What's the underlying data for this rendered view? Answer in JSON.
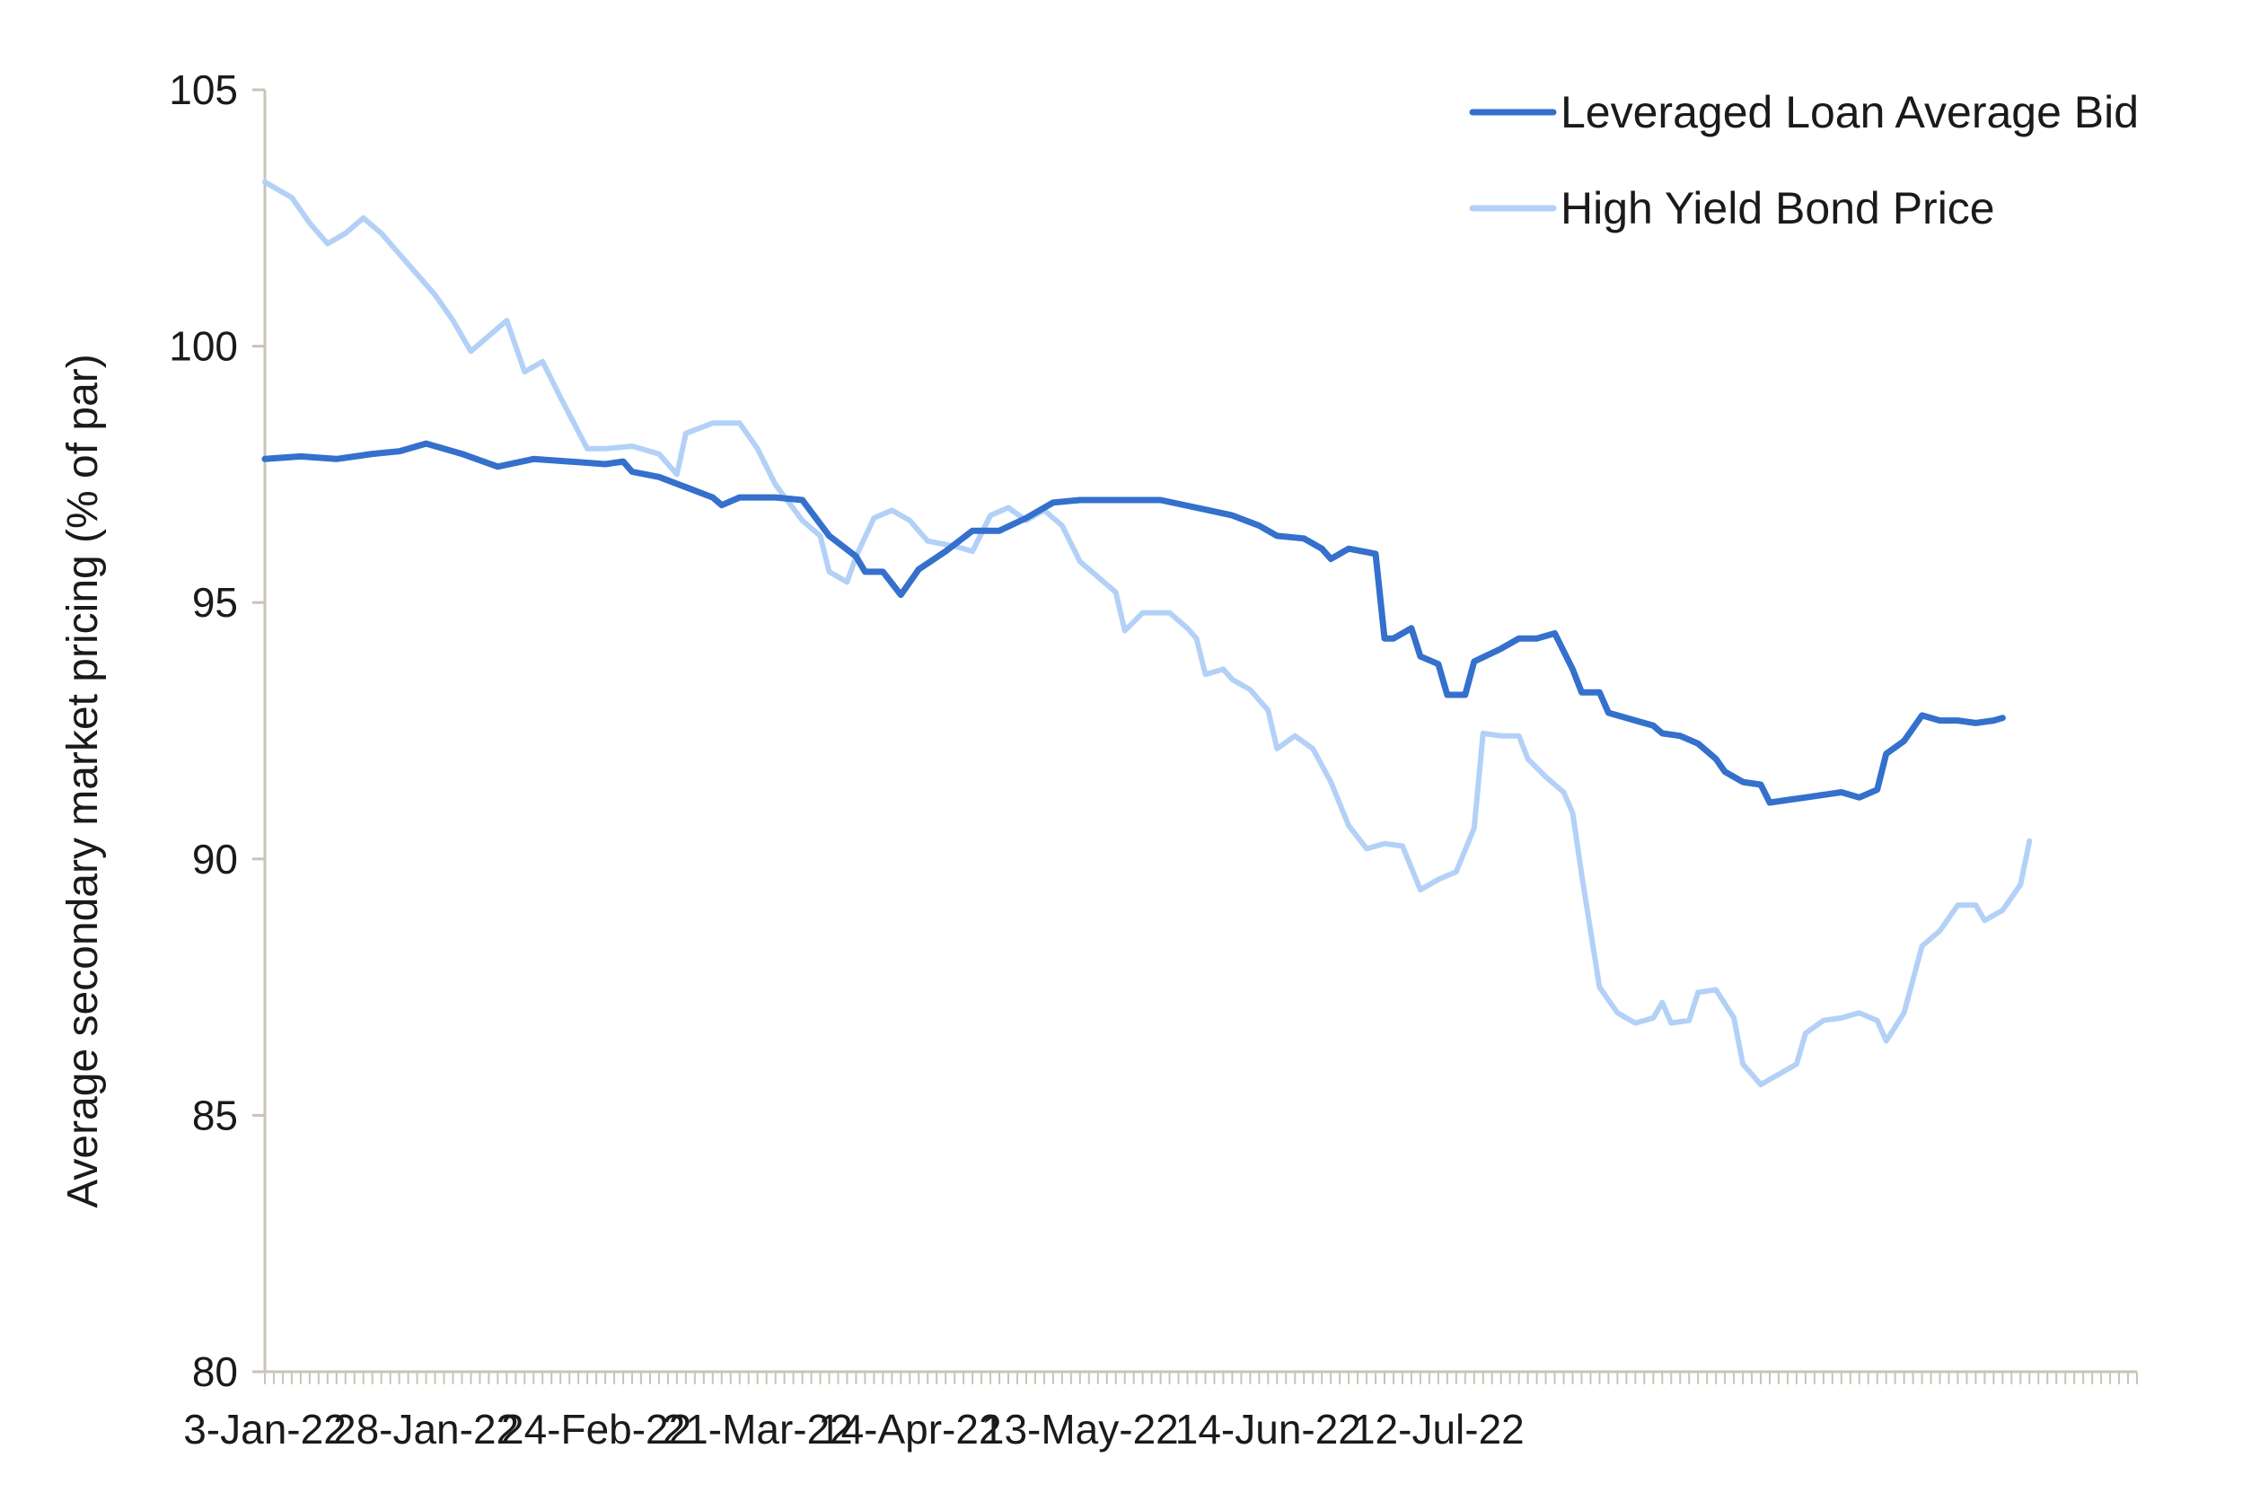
{
  "chart_data": {
    "type": "line",
    "ylabel": "Average secondary market pricing (% of par)",
    "xlabel": "",
    "ylim": [
      80,
      105
    ],
    "y_ticks": [
      80,
      85,
      90,
      95,
      100,
      105
    ],
    "x_tick_labels": [
      "3-Jan-22",
      "28-Jan-22",
      "24-Feb-22",
      "21-Mar-22",
      "14-Apr-22",
      "13-May-22",
      "14-Jun-22",
      "12-Jul-22"
    ],
    "x_tick_label_indices": [
      0,
      18,
      37,
      55,
      72,
      91,
      112,
      131
    ],
    "point_count": 150,
    "grid": false,
    "legend_position": "top-right",
    "series": [
      {
        "name": "Leveraged Loan Average Bid",
        "color": "#3470cc",
        "points": [
          [
            0,
            97.8
          ],
          [
            4,
            97.85
          ],
          [
            8,
            97.8
          ],
          [
            12,
            97.9
          ],
          [
            15,
            97.95
          ],
          [
            18,
            98.1
          ],
          [
            22,
            97.9
          ],
          [
            26,
            97.65
          ],
          [
            30,
            97.8
          ],
          [
            34,
            97.75
          ],
          [
            38,
            97.7
          ],
          [
            40,
            97.75
          ],
          [
            41,
            97.55
          ],
          [
            44,
            97.45
          ],
          [
            47,
            97.25
          ],
          [
            50,
            97.05
          ],
          [
            51,
            96.9
          ],
          [
            53,
            97.05
          ],
          [
            57,
            97.05
          ],
          [
            60,
            97.0
          ],
          [
            63,
            96.3
          ],
          [
            66,
            95.9
          ],
          [
            67,
            95.6
          ],
          [
            69,
            95.6
          ],
          [
            71,
            95.15
          ],
          [
            73,
            95.65
          ],
          [
            76,
            96.0
          ],
          [
            79,
            96.4
          ],
          [
            82,
            96.4
          ],
          [
            85,
            96.65
          ],
          [
            88,
            96.95
          ],
          [
            91,
            97.0
          ],
          [
            96,
            97.0
          ],
          [
            100,
            97.0
          ],
          [
            104,
            96.85
          ],
          [
            108,
            96.7
          ],
          [
            111,
            96.5
          ],
          [
            113,
            96.3
          ],
          [
            116,
            96.25
          ],
          [
            118,
            96.05
          ],
          [
            119,
            95.85
          ],
          [
            121,
            96.05
          ],
          [
            124,
            95.95
          ],
          [
            125,
            94.3
          ],
          [
            126,
            94.3
          ],
          [
            128,
            94.5
          ],
          [
            129,
            93.95
          ],
          [
            131,
            93.8
          ],
          [
            132,
            93.2
          ],
          [
            134,
            93.2
          ],
          [
            135,
            93.85
          ],
          [
            138,
            94.1
          ],
          [
            140,
            94.3
          ],
          [
            142,
            94.3
          ],
          [
            144,
            94.4
          ],
          [
            146,
            93.7
          ],
          [
            147,
            93.25
          ],
          [
            149,
            93.25
          ],
          [
            150,
            92.85
          ],
          [
            152,
            92.75
          ],
          [
            155,
            92.6
          ],
          [
            156,
            92.45
          ],
          [
            158,
            92.4
          ],
          [
            160,
            92.25
          ],
          [
            162,
            91.95
          ],
          [
            163,
            91.7
          ],
          [
            165,
            91.5
          ],
          [
            167,
            91.45
          ],
          [
            168,
            91.1
          ],
          [
            170,
            91.15
          ],
          [
            172,
            91.2
          ],
          [
            174,
            91.25
          ],
          [
            176,
            91.3
          ],
          [
            178,
            91.2
          ],
          [
            180,
            91.35
          ],
          [
            181,
            92.05
          ],
          [
            183,
            92.3
          ],
          [
            185,
            92.8
          ],
          [
            187,
            92.7
          ],
          [
            189,
            92.7
          ],
          [
            191,
            92.65
          ],
          [
            193,
            92.7
          ],
          [
            194,
            92.75
          ]
        ]
      },
      {
        "name": "High Yield Bond Price",
        "color": "#b3d1f7",
        "points": [
          [
            0,
            103.2
          ],
          [
            3,
            102.9
          ],
          [
            5,
            102.4
          ],
          [
            7,
            102.0
          ],
          [
            9,
            102.2
          ],
          [
            11,
            102.5
          ],
          [
            13,
            102.2
          ],
          [
            15,
            101.8
          ],
          [
            17,
            101.4
          ],
          [
            19,
            101.0
          ],
          [
            21,
            100.5
          ],
          [
            23,
            99.9
          ],
          [
            25,
            100.2
          ],
          [
            27,
            100.5
          ],
          [
            29,
            99.5
          ],
          [
            31,
            99.7
          ],
          [
            33,
            99.0
          ],
          [
            36,
            98.0
          ],
          [
            38,
            98.0
          ],
          [
            41,
            98.05
          ],
          [
            44,
            97.9
          ],
          [
            46,
            97.5
          ],
          [
            47,
            98.3
          ],
          [
            50,
            98.5
          ],
          [
            53,
            98.5
          ],
          [
            55,
            98.0
          ],
          [
            57,
            97.3
          ],
          [
            60,
            96.6
          ],
          [
            62,
            96.3
          ],
          [
            63,
            95.6
          ],
          [
            65,
            95.4
          ],
          [
            66,
            95.9
          ],
          [
            68,
            96.65
          ],
          [
            70,
            96.8
          ],
          [
            72,
            96.6
          ],
          [
            74,
            96.2
          ],
          [
            77,
            96.1
          ],
          [
            79,
            96.0
          ],
          [
            81,
            96.7
          ],
          [
            83,
            96.85
          ],
          [
            85,
            96.6
          ],
          [
            87,
            96.8
          ],
          [
            89,
            96.5
          ],
          [
            91,
            95.8
          ],
          [
            93,
            95.5
          ],
          [
            95,
            95.2
          ],
          [
            96,
            94.45
          ],
          [
            98,
            94.8
          ],
          [
            101,
            94.8
          ],
          [
            103,
            94.5
          ],
          [
            104,
            94.3
          ],
          [
            105,
            93.6
          ],
          [
            107,
            93.7
          ],
          [
            108,
            93.5
          ],
          [
            110,
            93.3
          ],
          [
            112,
            92.9
          ],
          [
            113,
            92.15
          ],
          [
            115,
            92.4
          ],
          [
            117,
            92.15
          ],
          [
            119,
            91.5
          ],
          [
            121,
            90.65
          ],
          [
            123,
            90.2
          ],
          [
            125,
            90.3
          ],
          [
            127,
            90.25
          ],
          [
            129,
            89.4
          ],
          [
            131,
            89.6
          ],
          [
            133,
            89.75
          ],
          [
            135,
            90.6
          ],
          [
            136,
            92.45
          ],
          [
            138,
            92.4
          ],
          [
            140,
            92.4
          ],
          [
            141,
            91.95
          ],
          [
            143,
            91.6
          ],
          [
            145,
            91.3
          ],
          [
            146,
            90.9
          ],
          [
            147,
            89.7
          ],
          [
            149,
            87.5
          ],
          [
            151,
            87.0
          ],
          [
            153,
            86.8
          ],
          [
            155,
            86.9
          ],
          [
            156,
            87.2
          ],
          [
            157,
            86.8
          ],
          [
            159,
            86.85
          ],
          [
            160,
            87.4
          ],
          [
            162,
            87.45
          ],
          [
            164,
            86.9
          ],
          [
            165,
            86.0
          ],
          [
            167,
            85.6
          ],
          [
            169,
            85.8
          ],
          [
            171,
            86.0
          ],
          [
            172,
            86.6
          ],
          [
            174,
            86.85
          ],
          [
            176,
            86.9
          ],
          [
            178,
            87.0
          ],
          [
            180,
            86.85
          ],
          [
            181,
            86.45
          ],
          [
            183,
            87.0
          ],
          [
            185,
            88.3
          ],
          [
            187,
            88.6
          ],
          [
            189,
            89.1
          ],
          [
            191,
            89.1
          ],
          [
            192,
            88.8
          ],
          [
            194,
            89.0
          ],
          [
            196,
            89.5
          ],
          [
            197,
            90.35
          ]
        ]
      }
    ]
  }
}
